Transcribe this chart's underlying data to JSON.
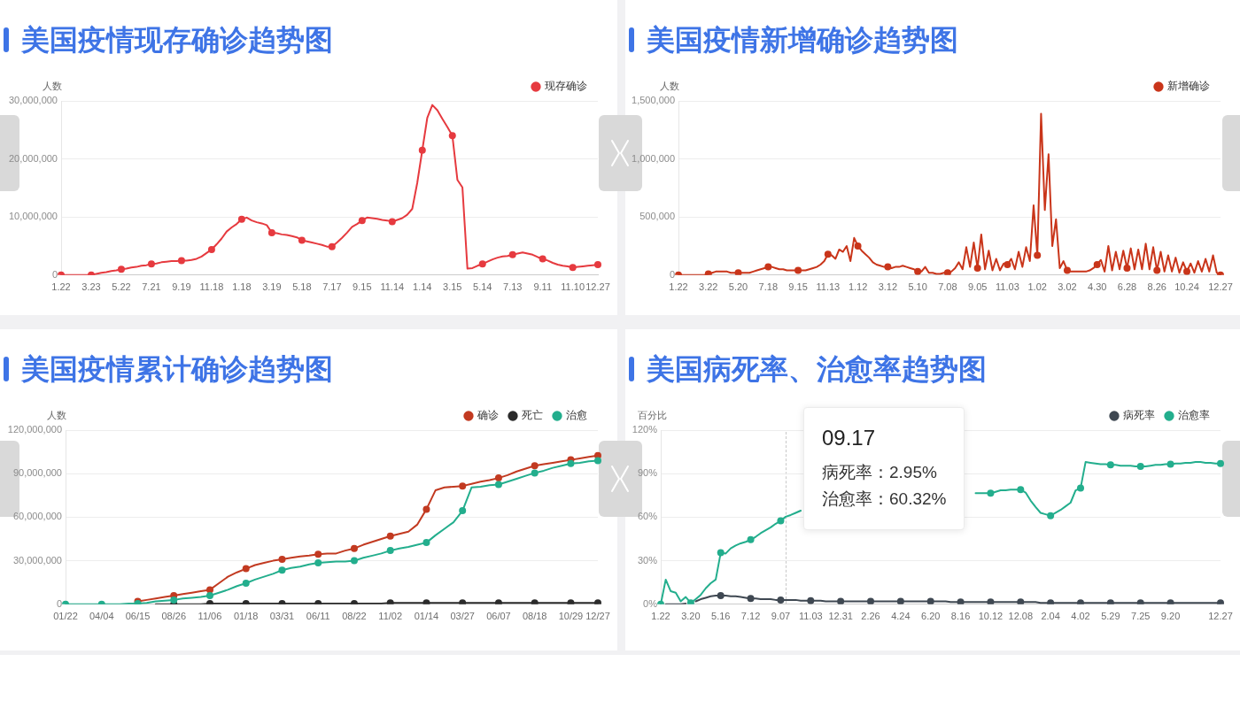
{
  "chart_data": [
    {
      "type": "line",
      "title": "美国疫情现存确诊趋势图",
      "ylabel": "人数",
      "legend": "top right",
      "grid": "y",
      "marker": "circle",
      "categories": [
        "1.22",
        null,
        null,
        null,
        null,
        null,
        "3.23",
        null,
        null,
        null,
        null,
        null,
        "5.22",
        null,
        null,
        null,
        null,
        null,
        "7.21",
        null,
        null,
        null,
        null,
        null,
        "9.19",
        null,
        null,
        null,
        null,
        null,
        "11.18",
        null,
        null,
        null,
        null,
        null,
        "1.18",
        null,
        null,
        null,
        null,
        null,
        "3.19",
        null,
        null,
        null,
        null,
        null,
        "5.18",
        null,
        null,
        null,
        null,
        null,
        "7.17",
        null,
        null,
        null,
        null,
        null,
        "9.15",
        null,
        null,
        null,
        null,
        null,
        "11.14",
        null,
        null,
        null,
        null,
        null,
        "1.14",
        null,
        null,
        null,
        null,
        null,
        "3.15",
        null,
        null,
        null,
        null,
        null,
        "5.14",
        null,
        null,
        null,
        null,
        null,
        "7.13",
        null,
        null,
        null,
        null,
        null,
        "9.11",
        null,
        null,
        null,
        null,
        null,
        "11.10",
        null,
        null,
        null,
        null,
        "12.27"
      ],
      "ylim": [
        0,
        30000000
      ],
      "yticks": [
        {
          "value": 0,
          "label": "0"
        },
        {
          "value": 10000000,
          "label": "10,000,000"
        },
        {
          "value": 20000000,
          "label": "20,000,000"
        },
        {
          "value": 30000000,
          "label": "30,000,000"
        }
      ],
      "series": [
        {
          "name": "现存确诊",
          "marker": "none",
          "color": "#e63a3f",
          "values": [
            0,
            0,
            0,
            0,
            0,
            0,
            0,
            200000,
            400000,
            500000,
            700000,
            800000,
            1000000,
            1100000,
            1300000,
            1400000,
            1600000,
            1700000,
            1900000,
            2000000,
            2200000,
            2300000,
            2400000,
            2400000,
            2500000,
            2500000,
            2600000,
            2800000,
            3200000,
            3800000,
            4400000,
            5300000,
            6300000,
            7500000,
            8200000,
            8800000,
            9600000,
            9900000,
            9400000,
            9100000,
            8900000,
            8600000,
            7300000,
            7200000,
            7000000,
            6900000,
            6700000,
            6500000,
            6000000,
            5800000,
            5600000,
            5400000,
            5200000,
            4900000,
            4900000,
            5600000,
            6400000,
            7300000,
            8300000,
            8800000,
            9400000,
            9900000,
            9800000,
            9700000,
            9500000,
            9400000,
            9200000,
            9500000,
            9800000,
            10400000,
            11400000,
            15900000,
            21500000,
            27100000,
            29300000,
            28400000,
            26900000,
            25500000,
            24000000,
            16400000,
            15100000,
            1100000,
            1200000,
            1600000,
            1900000,
            2300000,
            2700000,
            3000000,
            3200000,
            3300000,
            3500000,
            3700000,
            3900000,
            3700000,
            3500000,
            3100000,
            2800000,
            2500000,
            2100000,
            1800000,
            1600000,
            1500000,
            1300000,
            1400000,
            1500000,
            1600000,
            1700000,
            1800000
          ]
        },
        {
          "type": "scatter",
          "color": "#e63a3f",
          "values": [
            0,
            null,
            null,
            null,
            null,
            null,
            0,
            null,
            null,
            null,
            null,
            null,
            1000000,
            null,
            null,
            null,
            null,
            null,
            1900000,
            null,
            null,
            null,
            null,
            null,
            2500000,
            null,
            null,
            null,
            null,
            null,
            4400000,
            null,
            null,
            null,
            null,
            null,
            9600000,
            null,
            null,
            null,
            null,
            null,
            7300000,
            null,
            null,
            null,
            null,
            null,
            6000000,
            null,
            null,
            null,
            null,
            null,
            4900000,
            null,
            null,
            null,
            null,
            null,
            9400000,
            null,
            null,
            null,
            null,
            null,
            9200000,
            null,
            null,
            null,
            null,
            null,
            21500000,
            null,
            null,
            null,
            null,
            null,
            24000000,
            null,
            null,
            null,
            null,
            null,
            1900000,
            null,
            null,
            null,
            null,
            null,
            3500000,
            null,
            null,
            null,
            null,
            null,
            2800000,
            null,
            null,
            null,
            null,
            null,
            1300000,
            null,
            null,
            null,
            null,
            1800000
          ]
        }
      ]
    },
    {
      "type": "line",
      "title": "美国疫情新增确诊趋势图",
      "ylabel": "人数",
      "legend": "top right",
      "grid": "y",
      "marker": "circle",
      "categories": [
        "1.22",
        null,
        null,
        null,
        null,
        null,
        null,
        null,
        "3.22",
        null,
        null,
        null,
        null,
        null,
        null,
        null,
        "5.20",
        null,
        null,
        null,
        null,
        null,
        null,
        null,
        "7.18",
        null,
        null,
        null,
        null,
        null,
        null,
        null,
        "9.15",
        null,
        null,
        null,
        null,
        null,
        null,
        null,
        "11.13",
        null,
        null,
        null,
        null,
        null,
        null,
        null,
        "1.12",
        null,
        null,
        null,
        null,
        null,
        null,
        null,
        "3.12",
        null,
        null,
        null,
        null,
        null,
        null,
        null,
        "5.10",
        null,
        null,
        null,
        null,
        null,
        null,
        null,
        "7.08",
        null,
        null,
        null,
        null,
        null,
        null,
        null,
        "9.05",
        null,
        null,
        null,
        null,
        null,
        null,
        null,
        "11.03",
        null,
        null,
        null,
        null,
        null,
        null,
        null,
        "1.02",
        null,
        null,
        null,
        null,
        null,
        null,
        null,
        "3.02",
        null,
        null,
        null,
        null,
        null,
        null,
        null,
        "4.30",
        null,
        null,
        null,
        null,
        null,
        null,
        null,
        "6.28",
        null,
        null,
        null,
        null,
        null,
        null,
        null,
        "8.26",
        null,
        null,
        null,
        null,
        null,
        null,
        null,
        "10.24",
        null,
        null,
        null,
        null,
        null,
        null,
        null,
        null,
        "12.27"
      ],
      "ylim": [
        0,
        1500000
      ],
      "yticks": [
        {
          "value": 0,
          "label": "0"
        },
        {
          "value": 500000,
          "label": "500,000"
        },
        {
          "value": 1000000,
          "label": "1,000,000"
        },
        {
          "value": 1500000,
          "label": "1,500,000"
        }
      ],
      "series": [
        {
          "name": "新增确诊",
          "marker": "none",
          "color": "#c9351a",
          "values": [
            0,
            0,
            0,
            0,
            0,
            0,
            0,
            0,
            10000,
            20000,
            30000,
            30000,
            30000,
            30000,
            20000,
            20000,
            20000,
            20000,
            20000,
            20000,
            30000,
            40000,
            50000,
            60000,
            70000,
            70000,
            60000,
            50000,
            50000,
            40000,
            40000,
            40000,
            40000,
            40000,
            40000,
            50000,
            60000,
            70000,
            90000,
            120000,
            180000,
            170000,
            140000,
            220000,
            200000,
            250000,
            120000,
            320000,
            250000,
            210000,
            180000,
            150000,
            110000,
            90000,
            80000,
            70000,
            70000,
            60000,
            70000,
            70000,
            80000,
            70000,
            60000,
            50000,
            30000,
            30000,
            70000,
            20000,
            20000,
            10000,
            10000,
            20000,
            20000,
            30000,
            60000,
            110000,
            50000,
            240000,
            70000,
            280000,
            60000,
            350000,
            50000,
            210000,
            40000,
            140000,
            40000,
            100000,
            90000,
            140000,
            50000,
            200000,
            70000,
            240000,
            120000,
            600000,
            170000,
            1390000,
            560000,
            1040000,
            250000,
            480000,
            60000,
            120000,
            40000,
            30000,
            30000,
            30000,
            30000,
            30000,
            40000,
            60000,
            90000,
            130000,
            30000,
            250000,
            40000,
            200000,
            50000,
            210000,
            60000,
            230000,
            50000,
            220000,
            50000,
            270000,
            50000,
            240000,
            40000,
            200000,
            30000,
            170000,
            30000,
            150000,
            20000,
            110000,
            30000,
            100000,
            20000,
            120000,
            30000,
            140000,
            30000,
            170000,
            20000,
            0
          ]
        },
        {
          "type": "scatter",
          "color": "#c9351a",
          "values": [
            0,
            null,
            null,
            null,
            null,
            null,
            null,
            null,
            10000,
            null,
            null,
            null,
            null,
            null,
            null,
            null,
            20000,
            null,
            null,
            null,
            null,
            null,
            null,
            null,
            70000,
            null,
            null,
            null,
            null,
            null,
            null,
            null,
            40000,
            null,
            null,
            null,
            null,
            null,
            null,
            null,
            180000,
            null,
            null,
            null,
            null,
            null,
            null,
            null,
            250000,
            null,
            null,
            null,
            null,
            null,
            null,
            null,
            70000,
            null,
            null,
            null,
            null,
            null,
            null,
            null,
            30000,
            null,
            null,
            null,
            null,
            null,
            null,
            null,
            20000,
            null,
            null,
            null,
            null,
            null,
            null,
            null,
            60000,
            null,
            null,
            null,
            null,
            null,
            null,
            null,
            90000,
            null,
            null,
            null,
            null,
            null,
            null,
            null,
            170000,
            null,
            null,
            null,
            null,
            null,
            null,
            null,
            40000,
            null,
            null,
            null,
            null,
            null,
            null,
            null,
            90000,
            null,
            null,
            null,
            null,
            null,
            null,
            null,
            60000,
            null,
            null,
            null,
            null,
            null,
            null,
            null,
            40000,
            null,
            null,
            null,
            null,
            null,
            null,
            null,
            30000,
            null,
            null,
            null,
            null,
            null,
            null,
            null,
            null,
            0
          ]
        }
      ]
    },
    {
      "type": "line",
      "title": "美国疫情累计确诊趋势图",
      "ylabel": "人数",
      "legend": "top right",
      "grid": "y",
      "marker": "circle",
      "categories": [
        "01/22",
        null,
        null,
        null,
        "04/04",
        null,
        null,
        null,
        "06/15",
        null,
        null,
        null,
        "08/26",
        null,
        null,
        null,
        "11/06",
        null,
        null,
        null,
        "01/18",
        null,
        null,
        null,
        "03/31",
        null,
        null,
        null,
        "06/11",
        null,
        null,
        null,
        "08/22",
        null,
        null,
        null,
        "11/02",
        null,
        null,
        null,
        "01/14",
        null,
        null,
        null,
        "03/27",
        null,
        null,
        null,
        "06/07",
        null,
        null,
        null,
        "08/18",
        null,
        null,
        null,
        "10/29",
        null,
        null,
        "12/27"
      ],
      "ylim": [
        0,
        120000000
      ],
      "yticks": [
        {
          "value": 0,
          "label": "0"
        },
        {
          "value": 30000000,
          "label": "30,000,000"
        },
        {
          "value": 60000000,
          "label": "60,000,000"
        },
        {
          "value": 90000000,
          "label": "90,000,000"
        },
        {
          "value": 120000000,
          "label": "120,000,000"
        }
      ],
      "series": [
        {
          "name": "确诊",
          "marker": "none",
          "color": "#c23a21",
          "values": [
            null,
            null,
            null,
            null,
            null,
            null,
            null,
            null,
            2000000,
            3000000,
            4000000,
            5000000,
            6000000,
            7000000,
            8000000,
            9000000,
            10000000,
            14500000,
            19000000,
            22000000,
            24500000,
            27000000,
            28500000,
            30000000,
            31000000,
            32000000,
            33000000,
            33500000,
            34500000,
            35000000,
            35000000,
            37000000,
            38500000,
            41000000,
            43000000,
            45000000,
            47000000,
            48500000,
            50000000,
            55000000,
            65500000,
            78500000,
            80500000,
            81000000,
            81500000,
            83000000,
            84500000,
            85500000,
            87000000,
            89000000,
            91500000,
            93500000,
            95500000,
            96500000,
            97500000,
            98500000,
            99500000,
            100500000,
            101500000,
            102500000
          ]
        },
        {
          "type": "scatter",
          "color": "#c23a21",
          "values": [
            null,
            null,
            null,
            null,
            null,
            null,
            null,
            null,
            2000000,
            null,
            null,
            null,
            6000000,
            null,
            null,
            null,
            10000000,
            null,
            null,
            null,
            24500000,
            null,
            null,
            null,
            31000000,
            null,
            null,
            null,
            34500000,
            null,
            null,
            null,
            38500000,
            null,
            null,
            null,
            47000000,
            null,
            null,
            null,
            65500000,
            null,
            null,
            null,
            81500000,
            null,
            null,
            null,
            87000000,
            null,
            null,
            null,
            95500000,
            null,
            null,
            null,
            99500000,
            null,
            null,
            102500000
          ]
        },
        {
          "name": "死亡",
          "marker": "none",
          "color": "#2b2b2b",
          "values": [
            null,
            null,
            null,
            null,
            null,
            null,
            null,
            null,
            null,
            null,
            0,
            0,
            0,
            0,
            0,
            0,
            500000,
            500000,
            500000,
            500000,
            500000,
            500000,
            500000,
            500000,
            500000,
            500000,
            500000,
            500000,
            500000,
            500000,
            500000,
            500000,
            500000,
            500000,
            500000,
            500000,
            1000000,
            1000000,
            1000000,
            1000000,
            1000000,
            1000000,
            1000000,
            1000000,
            1000000,
            1000000,
            1000000,
            1000000,
            1000000,
            1000000,
            1000000,
            1000000,
            1000000,
            1000000,
            1000000,
            1000000,
            1000000,
            1000000,
            1000000,
            1000000
          ]
        },
        {
          "type": "scatter",
          "color": "#2b2b2b",
          "values": [
            null,
            null,
            null,
            null,
            null,
            null,
            null,
            null,
            null,
            null,
            null,
            null,
            0,
            null,
            null,
            null,
            500000,
            null,
            null,
            null,
            500000,
            null,
            null,
            null,
            500000,
            null,
            null,
            null,
            500000,
            null,
            null,
            null,
            500000,
            null,
            null,
            null,
            1000000,
            null,
            null,
            null,
            1000000,
            null,
            null,
            null,
            1000000,
            null,
            null,
            null,
            1000000,
            null,
            null,
            null,
            1000000,
            null,
            null,
            null,
            1000000,
            null,
            null,
            1000000
          ]
        },
        {
          "name": "治愈",
          "marker": "none",
          "color": "#23ae8d",
          "values": [
            0,
            0,
            0,
            0,
            0,
            0,
            0,
            500000,
            500000,
            1000000,
            2000000,
            2500000,
            3000000,
            4000000,
            4500000,
            5000000,
            6000000,
            8000000,
            10000000,
            12500000,
            14500000,
            17000000,
            19000000,
            21000000,
            23500000,
            25000000,
            26000000,
            27500000,
            28500000,
            29000000,
            29500000,
            29500000,
            30000000,
            32000000,
            33500000,
            35000000,
            37000000,
            38500000,
            39500000,
            41000000,
            42500000,
            47500000,
            52000000,
            56500000,
            64500000,
            80500000,
            81000000,
            82000000,
            82500000,
            84500000,
            86500000,
            88500000,
            90500000,
            92000000,
            94000000,
            95500000,
            97000000,
            97500000,
            98500000,
            99000000
          ]
        },
        {
          "type": "scatter",
          "color": "#23ae8d",
          "values": [
            0,
            null,
            null,
            null,
            0,
            null,
            null,
            null,
            500000,
            null,
            null,
            null,
            3000000,
            null,
            null,
            null,
            6000000,
            null,
            null,
            null,
            14500000,
            null,
            null,
            null,
            23500000,
            null,
            null,
            null,
            28500000,
            null,
            null,
            null,
            30000000,
            null,
            null,
            null,
            37000000,
            null,
            null,
            null,
            42500000,
            null,
            null,
            null,
            64500000,
            null,
            null,
            null,
            82500000,
            null,
            null,
            null,
            90500000,
            null,
            null,
            null,
            97000000,
            null,
            null,
            99000000
          ]
        }
      ]
    },
    {
      "type": "line",
      "title": "美国病死率、治愈率趋势图",
      "ylabel": "百分比",
      "legend": "top right",
      "grid": "y",
      "marker": "circle",
      "categories": [
        "1.22",
        null,
        null,
        null,
        null,
        null,
        "3.20",
        null,
        null,
        null,
        null,
        null,
        "5.16",
        null,
        null,
        null,
        null,
        null,
        "7.12",
        null,
        null,
        null,
        null,
        null,
        "9.07",
        null,
        null,
        null,
        null,
        null,
        "11.03",
        null,
        null,
        null,
        null,
        null,
        "12.31",
        null,
        null,
        null,
        null,
        null,
        "2.26",
        null,
        null,
        null,
        null,
        null,
        "4.24",
        null,
        null,
        null,
        null,
        null,
        "6.20",
        null,
        null,
        null,
        null,
        null,
        "8.16",
        null,
        null,
        null,
        null,
        null,
        "10.12",
        null,
        null,
        null,
        null,
        null,
        "12.08",
        null,
        null,
        null,
        null,
        null,
        "2.04",
        null,
        null,
        null,
        null,
        null,
        "4.02",
        null,
        null,
        null,
        null,
        null,
        "5.29",
        null,
        null,
        null,
        null,
        null,
        "7.25",
        null,
        null,
        null,
        null,
        null,
        "9.20",
        null,
        null,
        null,
        null,
        null,
        null,
        null,
        null,
        null,
        "12.27"
      ],
      "ylim": [
        0,
        120
      ],
      "yticks": [
        {
          "value": 0,
          "label": "0%"
        },
        {
          "value": 30,
          "label": "30%"
        },
        {
          "value": 60,
          "label": "60%"
        },
        {
          "value": 90,
          "label": "90%"
        },
        {
          "value": 120,
          "label": "120%"
        }
      ],
      "annotations": [
        "09.17",
        "病死率：2.95%",
        "治愈率：60.32%"
      ],
      "series": [
        {
          "name": "病死率",
          "marker": "none",
          "color": "#3f4852",
          "values": [
            null,
            0,
            0,
            0,
            0,
            0.5,
            null,
            2,
            3.5,
            4.5,
            5.5,
            6,
            6,
            6,
            5.5,
            5.5,
            5,
            4.5,
            4,
            4,
            3.5,
            3.5,
            3.5,
            3,
            3,
            2.95,
            3,
            3,
            2.5,
            2.5,
            2.5,
            2.5,
            2.5,
            2,
            2,
            2,
            2,
            2,
            2,
            2,
            2,
            2,
            2,
            2,
            2,
            2,
            2,
            2,
            2,
            2,
            2,
            2,
            2,
            2,
            2,
            2,
            2,
            2,
            1.5,
            1.5,
            1.5,
            1.5,
            1.5,
            1.5,
            1.5,
            1.5,
            1.5,
            1.5,
            1.5,
            1.5,
            1.5,
            1.5,
            1.5,
            1.5,
            1.5,
            1.5,
            1,
            1,
            1,
            1,
            1,
            1,
            1,
            1,
            1,
            1,
            1,
            1,
            1,
            1,
            1,
            1,
            1,
            1,
            1,
            1,
            1,
            1,
            1,
            1,
            1,
            1,
            1,
            1,
            1,
            1,
            1,
            1,
            1,
            1,
            1,
            1,
            1
          ]
        },
        {
          "type": "scatter",
          "color": "#3f4852",
          "values": [
            null,
            null,
            null,
            null,
            null,
            null,
            null,
            null,
            null,
            null,
            null,
            null,
            6,
            null,
            null,
            null,
            null,
            null,
            4,
            null,
            null,
            null,
            null,
            null,
            3,
            null,
            null,
            null,
            null,
            null,
            2.5,
            null,
            null,
            null,
            null,
            null,
            2,
            null,
            null,
            null,
            null,
            null,
            2,
            null,
            null,
            null,
            null,
            null,
            2,
            null,
            null,
            null,
            null,
            null,
            2,
            null,
            null,
            null,
            null,
            null,
            1.5,
            null,
            null,
            null,
            null,
            null,
            1.5,
            null,
            null,
            null,
            null,
            null,
            1.5,
            null,
            null,
            null,
            null,
            null,
            1,
            null,
            null,
            null,
            null,
            null,
            1,
            null,
            null,
            null,
            null,
            null,
            1,
            null,
            null,
            null,
            null,
            null,
            1,
            null,
            null,
            null,
            null,
            null,
            1,
            null,
            null,
            null,
            null,
            null,
            null,
            null,
            null,
            null,
            1
          ]
        },
        {
          "name": "治愈率",
          "marker": "none",
          "color": "#23ae8d",
          "values": [
            0,
            17,
            9,
            8,
            2,
            5,
            1,
            3.5,
            6.5,
            11,
            14.5,
            17,
            35.5,
            35,
            38.5,
            40.5,
            42,
            43,
            44.5,
            46.5,
            49,
            51,
            53,
            55.5,
            57.5,
            60.32,
            61.5,
            63,
            64.5,
            null,
            null,
            null,
            null,
            null,
            null,
            null,
            null,
            null,
            null,
            null,
            null,
            null,
            null,
            null,
            null,
            null,
            null,
            null,
            null,
            null,
            null,
            null,
            null,
            null,
            null,
            null,
            null,
            null,
            null,
            null,
            null,
            null,
            null,
            76.5,
            76.5,
            76.5,
            76.5,
            77.5,
            78.5,
            78.5,
            79,
            79,
            79,
            77,
            71.5,
            67,
            63,
            62,
            61,
            63,
            65,
            67.5,
            70,
            78.5,
            80,
            98,
            97.5,
            97,
            96.5,
            96.5,
            96,
            96,
            95.5,
            95.5,
            95.5,
            95,
            95,
            95,
            95.5,
            96,
            96,
            96.5,
            96.5,
            97,
            97,
            97.5,
            97.5,
            98,
            98,
            97.5,
            97.5,
            97,
            97
          ]
        },
        {
          "type": "scatter",
          "color": "#23ae8d",
          "values": [
            0,
            null,
            null,
            null,
            null,
            null,
            1,
            null,
            null,
            null,
            null,
            null,
            35.5,
            null,
            null,
            null,
            null,
            null,
            44.5,
            null,
            null,
            null,
            null,
            null,
            57.5,
            null,
            null,
            null,
            null,
            null,
            null,
            null,
            null,
            null,
            null,
            null,
            null,
            null,
            null,
            null,
            null,
            null,
            null,
            null,
            null,
            null,
            null,
            null,
            null,
            null,
            null,
            null,
            null,
            null,
            null,
            null,
            null,
            null,
            null,
            null,
            null,
            null,
            null,
            null,
            null,
            null,
            76.5,
            null,
            null,
            null,
            null,
            null,
            79,
            null,
            null,
            null,
            null,
            null,
            61,
            null,
            null,
            null,
            null,
            null,
            80,
            null,
            null,
            null,
            null,
            null,
            96,
            null,
            null,
            null,
            null,
            null,
            95,
            null,
            null,
            null,
            null,
            null,
            96.5,
            null,
            null,
            null,
            null,
            null,
            null,
            null,
            null,
            null,
            97
          ]
        }
      ]
    }
  ]
}
